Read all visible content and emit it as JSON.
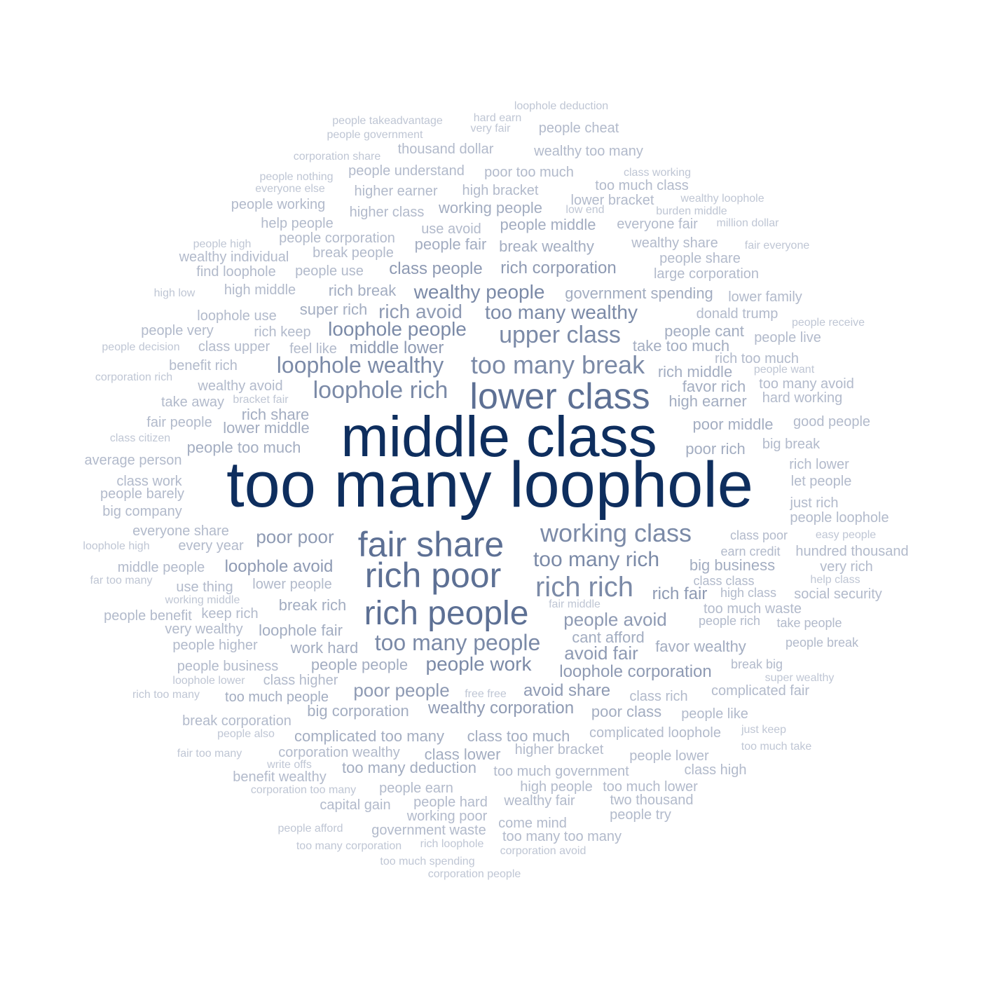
{
  "words": [
    {
      "text": "too many loophole",
      "weight": 100
    },
    {
      "text": "middle class",
      "weight": 90
    },
    {
      "text": "lower class",
      "weight": 55
    },
    {
      "text": "fair share",
      "weight": 52
    },
    {
      "text": "rich poor",
      "weight": 50
    },
    {
      "text": "rich people",
      "weight": 48
    },
    {
      "text": "too many break",
      "weight": 42
    },
    {
      "text": "upper class",
      "weight": 40
    },
    {
      "text": "working class",
      "weight": 40
    },
    {
      "text": "loophole rich",
      "weight": 38
    },
    {
      "text": "rich rich",
      "weight": 38
    },
    {
      "text": "loophole wealthy",
      "weight": 36
    },
    {
      "text": "too many people",
      "weight": 34
    },
    {
      "text": "too many rich",
      "weight": 33
    },
    {
      "text": "people work",
      "weight": 32
    },
    {
      "text": "too many wealthy",
      "weight": 31
    },
    {
      "text": "wealthy people",
      "weight": 30
    },
    {
      "text": "loophole people",
      "weight": 30
    },
    {
      "text": "rich avoid",
      "weight": 29
    },
    {
      "text": "people avoid",
      "weight": 29
    },
    {
      "text": "avoid fair",
      "weight": 28
    },
    {
      "text": "poor people",
      "weight": 28
    },
    {
      "text": "poor poor",
      "weight": 28
    },
    {
      "text": "rich fair",
      "weight": 26
    },
    {
      "text": "loophole avoid",
      "weight": 26
    },
    {
      "text": "loophole corporation",
      "weight": 26
    },
    {
      "text": "avoid share",
      "weight": 25
    },
    {
      "text": "wealthy corporation",
      "weight": 25
    },
    {
      "text": "middle lower",
      "weight": 25
    },
    {
      "text": "rich corporation",
      "weight": 24
    },
    {
      "text": "class people",
      "weight": 24
    },
    {
      "text": "people fair",
      "weight": 22
    },
    {
      "text": "people middle",
      "weight": 22
    },
    {
      "text": "break wealthy",
      "weight": 22
    },
    {
      "text": "rich middle",
      "weight": 22
    },
    {
      "text": "lower middle",
      "weight": 22
    },
    {
      "text": "rich share",
      "weight": 22
    },
    {
      "text": "big business",
      "weight": 22
    },
    {
      "text": "favor wealthy",
      "weight": 22
    },
    {
      "text": "government spending",
      "weight": 22
    },
    {
      "text": "people cant",
      "weight": 22
    },
    {
      "text": "take too much",
      "weight": 22
    },
    {
      "text": "poor middle",
      "weight": 22
    },
    {
      "text": "poor rich",
      "weight": 22
    },
    {
      "text": "favor rich",
      "weight": 22
    },
    {
      "text": "high earner",
      "weight": 22
    },
    {
      "text": "cant afford",
      "weight": 22
    },
    {
      "text": "people people",
      "weight": 22
    },
    {
      "text": "break rich",
      "weight": 22
    },
    {
      "text": "poor class",
      "weight": 22
    },
    {
      "text": "class too much",
      "weight": 22
    },
    {
      "text": "complicated too many",
      "weight": 22
    },
    {
      "text": "too many deduction",
      "weight": 22
    },
    {
      "text": "class lower",
      "weight": 22
    },
    {
      "text": "big corporation",
      "weight": 22
    },
    {
      "text": "working people",
      "weight": 22
    },
    {
      "text": "people too much",
      "weight": 22
    },
    {
      "text": "super rich",
      "weight": 22
    },
    {
      "text": "rich break",
      "weight": 22
    },
    {
      "text": "loophole fair",
      "weight": 22
    },
    {
      "text": "work hard",
      "weight": 22
    },
    {
      "text": "too much people",
      "weight": 22
    },
    {
      "text": "complicated fair",
      "weight": 20
    },
    {
      "text": "complicated loophole",
      "weight": 20
    },
    {
      "text": "social security",
      "weight": 20
    },
    {
      "text": "too much waste",
      "weight": 20
    },
    {
      "text": "hundred thousand",
      "weight": 20
    },
    {
      "text": "two thousand",
      "weight": 20
    },
    {
      "text": "too much lower",
      "weight": 20
    },
    {
      "text": "high people",
      "weight": 20
    },
    {
      "text": "wealthy fair",
      "weight": 20
    },
    {
      "text": "people hard",
      "weight": 20
    },
    {
      "text": "people earn",
      "weight": 20
    },
    {
      "text": "too many too many",
      "weight": 20
    },
    {
      "text": "too much government",
      "weight": 20
    },
    {
      "text": "higher bracket",
      "weight": 20
    },
    {
      "text": "class rich",
      "weight": 20
    },
    {
      "text": "people lower",
      "weight": 20
    },
    {
      "text": "class high",
      "weight": 20
    },
    {
      "text": "people like",
      "weight": 20
    },
    {
      "text": "people try",
      "weight": 20
    },
    {
      "text": "come mind",
      "weight": 20
    },
    {
      "text": "government waste",
      "weight": 20
    },
    {
      "text": "working poor",
      "weight": 20
    },
    {
      "text": "capital gain",
      "weight": 20
    },
    {
      "text": "corporation wealthy",
      "weight": 20
    },
    {
      "text": "benefit wealthy",
      "weight": 20
    },
    {
      "text": "break corporation",
      "weight": 20
    },
    {
      "text": "people business",
      "weight": 20
    },
    {
      "text": "class higher",
      "weight": 20
    },
    {
      "text": "people higher",
      "weight": 20
    },
    {
      "text": "very wealthy",
      "weight": 20
    },
    {
      "text": "keep rich",
      "weight": 20
    },
    {
      "text": "people benefit",
      "weight": 20
    },
    {
      "text": "lower people",
      "weight": 20
    },
    {
      "text": "use thing",
      "weight": 20
    },
    {
      "text": "middle people",
      "weight": 20
    },
    {
      "text": "every year",
      "weight": 20
    },
    {
      "text": "everyone share",
      "weight": 20
    },
    {
      "text": "big company",
      "weight": 20
    },
    {
      "text": "people barely",
      "weight": 20
    },
    {
      "text": "class work",
      "weight": 20
    },
    {
      "text": "average person",
      "weight": 20
    },
    {
      "text": "fair people",
      "weight": 20
    },
    {
      "text": "take away",
      "weight": 20
    },
    {
      "text": "wealthy avoid",
      "weight": 20
    },
    {
      "text": "benefit rich",
      "weight": 20
    },
    {
      "text": "class upper",
      "weight": 20
    },
    {
      "text": "people very",
      "weight": 20
    },
    {
      "text": "loophole use",
      "weight": 20
    },
    {
      "text": "high middle",
      "weight": 20
    },
    {
      "text": "rich keep",
      "weight": 20
    },
    {
      "text": "feel like",
      "weight": 20
    },
    {
      "text": "find loophole",
      "weight": 20
    },
    {
      "text": "people use",
      "weight": 20
    },
    {
      "text": "wealthy individual",
      "weight": 20
    },
    {
      "text": "break people",
      "weight": 20
    },
    {
      "text": "people corporation",
      "weight": 20
    },
    {
      "text": "help people",
      "weight": 20
    },
    {
      "text": "use avoid",
      "weight": 20
    },
    {
      "text": "higher class",
      "weight": 20
    },
    {
      "text": "people working",
      "weight": 20
    },
    {
      "text": "higher earner",
      "weight": 20
    },
    {
      "text": "high bracket",
      "weight": 20
    },
    {
      "text": "people understand",
      "weight": 20
    },
    {
      "text": "poor too much",
      "weight": 20
    },
    {
      "text": "thousand dollar",
      "weight": 20
    },
    {
      "text": "wealthy too many",
      "weight": 20
    },
    {
      "text": "people cheat",
      "weight": 20
    },
    {
      "text": "too much class",
      "weight": 20
    },
    {
      "text": "lower bracket",
      "weight": 20
    },
    {
      "text": "everyone fair",
      "weight": 20
    },
    {
      "text": "wealthy share",
      "weight": 20
    },
    {
      "text": "people share",
      "weight": 20
    },
    {
      "text": "large corporation",
      "weight": 20
    },
    {
      "text": "lower family",
      "weight": 20
    },
    {
      "text": "donald trump",
      "weight": 20
    },
    {
      "text": "people live",
      "weight": 20
    },
    {
      "text": "rich too much",
      "weight": 20
    },
    {
      "text": "too many avoid",
      "weight": 20
    },
    {
      "text": "hard working",
      "weight": 20
    },
    {
      "text": "good people",
      "weight": 20
    },
    {
      "text": "big break",
      "weight": 20
    },
    {
      "text": "rich lower",
      "weight": 20
    },
    {
      "text": "let people",
      "weight": 20
    },
    {
      "text": "just rich",
      "weight": 20
    },
    {
      "text": "people loophole",
      "weight": 20
    },
    {
      "text": "class poor",
      "weight": 18
    },
    {
      "text": "earn credit",
      "weight": 18
    },
    {
      "text": "very rich",
      "weight": 20
    },
    {
      "text": "class class",
      "weight": 18
    },
    {
      "text": "high class",
      "weight": 18
    },
    {
      "text": "people rich",
      "weight": 18
    },
    {
      "text": "take people",
      "weight": 18
    },
    {
      "text": "people break",
      "weight": 18
    },
    {
      "text": "break big",
      "weight": 18
    },
    {
      "text": "fair middle",
      "weight": 16
    },
    {
      "text": "free free",
      "weight": 16
    },
    {
      "text": "people takeadvantage",
      "weight": 16
    },
    {
      "text": "people government",
      "weight": 16
    },
    {
      "text": "hard earn",
      "weight": 16
    },
    {
      "text": "very fair",
      "weight": 16
    },
    {
      "text": "loophole deduction",
      "weight": 16
    },
    {
      "text": "corporation share",
      "weight": 16
    },
    {
      "text": "people nothing",
      "weight": 16
    },
    {
      "text": "everyone else",
      "weight": 16
    },
    {
      "text": "class working",
      "weight": 16
    },
    {
      "text": "wealthy loophole",
      "weight": 16
    },
    {
      "text": "burden middle",
      "weight": 16
    },
    {
      "text": "low end",
      "weight": 16
    },
    {
      "text": "million dollar",
      "weight": 16
    },
    {
      "text": "people high",
      "weight": 16
    },
    {
      "text": "fair everyone",
      "weight": 16
    },
    {
      "text": "high low",
      "weight": 16
    },
    {
      "text": "people receive",
      "weight": 16
    },
    {
      "text": "people decision",
      "weight": 16
    },
    {
      "text": "people want",
      "weight": 16
    },
    {
      "text": "corporation rich",
      "weight": 16
    },
    {
      "text": "bracket fair",
      "weight": 16
    },
    {
      "text": "class citizen",
      "weight": 16
    },
    {
      "text": "loophole high",
      "weight": 16
    },
    {
      "text": "far too many",
      "weight": 16
    },
    {
      "text": "working middle",
      "weight": 16
    },
    {
      "text": "easy people",
      "weight": 16
    },
    {
      "text": "help class",
      "weight": 16
    },
    {
      "text": "super wealthy",
      "weight": 16
    },
    {
      "text": "loophole lower",
      "weight": 16
    },
    {
      "text": "rich too many",
      "weight": 16
    },
    {
      "text": "people also",
      "weight": 16
    },
    {
      "text": "fair too many",
      "weight": 16
    },
    {
      "text": "write offs",
      "weight": 16
    },
    {
      "text": "just keep",
      "weight": 16
    },
    {
      "text": "too much take",
      "weight": 16
    },
    {
      "text": "corporation too many",
      "weight": 16
    },
    {
      "text": "people afford",
      "weight": 16
    },
    {
      "text": "too many corporation",
      "weight": 16
    },
    {
      "text": "rich loophole",
      "weight": 16
    },
    {
      "text": "corporation avoid",
      "weight": 16
    },
    {
      "text": "too much spending",
      "weight": 16
    },
    {
      "text": "corporation people",
      "weight": 16
    }
  ]
}
